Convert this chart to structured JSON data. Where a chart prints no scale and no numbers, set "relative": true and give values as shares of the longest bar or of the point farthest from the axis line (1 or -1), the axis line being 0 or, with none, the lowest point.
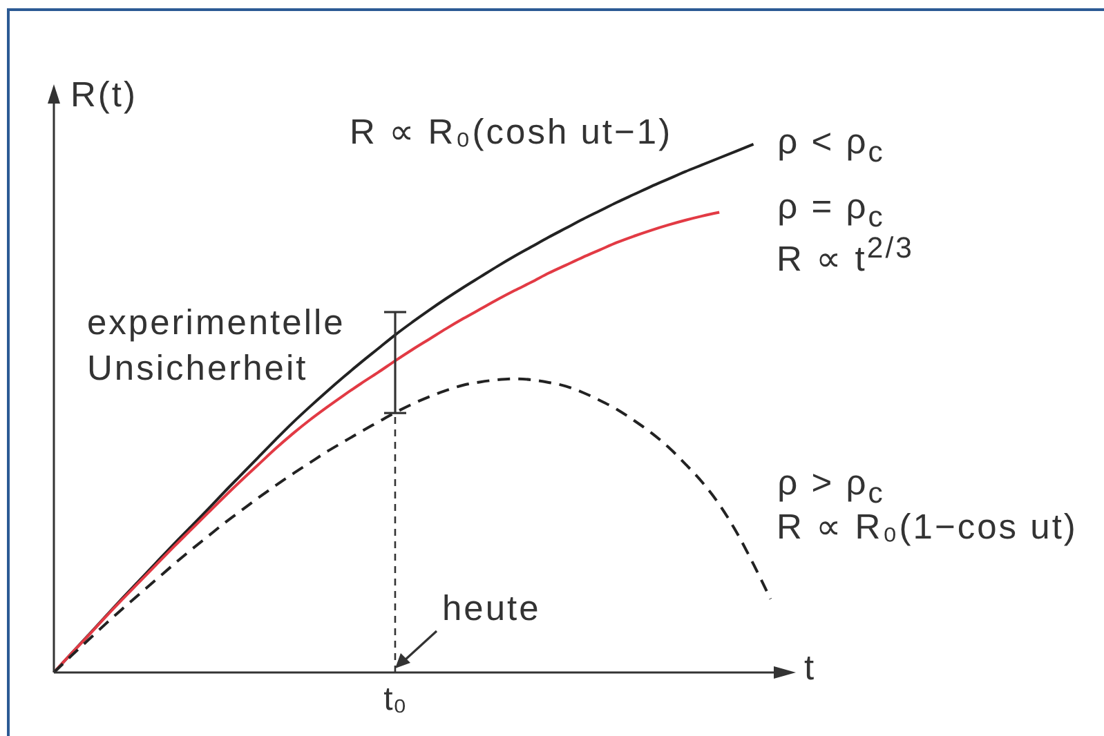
{
  "chart_data": {
    "type": "line",
    "xlabel": "t",
    "ylabel": "R(t)",
    "relative": true,
    "categories": [
      null,
      null,
      null,
      null,
      null,
      null,
      null,
      null,
      null,
      null,
      null,
      null,
      null,
      null,
      null,
      null,
      null,
      null,
      null,
      null,
      null,
      null,
      null,
      null,
      null,
      null,
      null,
      null,
      null,
      null,
      null,
      null,
      null,
      null,
      null,
      null,
      null,
      null,
      null,
      null,
      null,
      null,
      null,
      null
    ],
    "series": [
      {
        "name": "ρ < ρ$_{c}$",
        "color": "#222222",
        "line_style": "solid",
        "values": [
          0,
          0.035,
          0.07,
          0.105,
          0.14,
          0.174,
          0.208,
          0.242,
          0.275,
          0.308,
          0.342,
          0.375,
          0.408,
          0.441,
          0.473,
          0.503,
          0.532,
          0.56,
          0.587,
          0.613,
          0.639,
          0.663,
          0.686,
          0.708,
          0.729,
          0.749,
          0.769,
          0.788,
          0.806,
          0.824,
          0.841,
          0.858,
          0.874,
          0.89,
          0.905,
          0.92,
          0.934,
          0.948,
          0.961,
          0.974,
          0.987,
          1,
          null,
          null
        ]
      },
      {
        "name": "ρ = ρ$_{c}$",
        "color": "#e23a44",
        "line_style": "solid",
        "values": [
          0,
          0.035,
          0.069,
          0.104,
          0.138,
          0.171,
          0.204,
          0.237,
          0.269,
          0.301,
          0.333,
          0.364,
          0.394,
          0.424,
          0.452,
          0.478,
          0.502,
          0.525,
          0.547,
          0.568,
          0.59,
          0.611,
          0.631,
          0.651,
          0.67,
          0.688,
          0.706,
          0.723,
          0.739,
          0.756,
          0.771,
          0.786,
          0.8,
          0.814,
          0.826,
          0.837,
          0.847,
          0.856,
          0.864,
          0.871,
          null,
          null,
          null,
          null
        ]
      },
      {
        "name": "ρ > ρ$_{c}$",
        "color": "#222222",
        "line_style": "dashed",
        "values": [
          0,
          0.031,
          0.061,
          0.091,
          0.12,
          0.148,
          0.176,
          0.204,
          0.231,
          0.257,
          0.283,
          0.307,
          0.331,
          0.354,
          0.376,
          0.397,
          0.418,
          0.437,
          0.456,
          0.474,
          0.492,
          0.508,
          0.522,
          0.534,
          0.544,
          0.55,
          0.554,
          0.556,
          0.554,
          0.549,
          0.542,
          0.53,
          0.515,
          0.498,
          0.477,
          0.454,
          0.427,
          0.395,
          0.36,
          0.318,
          0.266,
          0.205,
          0.139,
          null
        ]
      }
    ],
    "annotations": [
      "R ∝ R₀(cosh ut−1)",
      "R ∝ t$^{2/3}$",
      "R ∝ R₀(1−cos ut)",
      "experimentelle Unsicherheit",
      "heute",
      "t₀"
    ]
  }
}
